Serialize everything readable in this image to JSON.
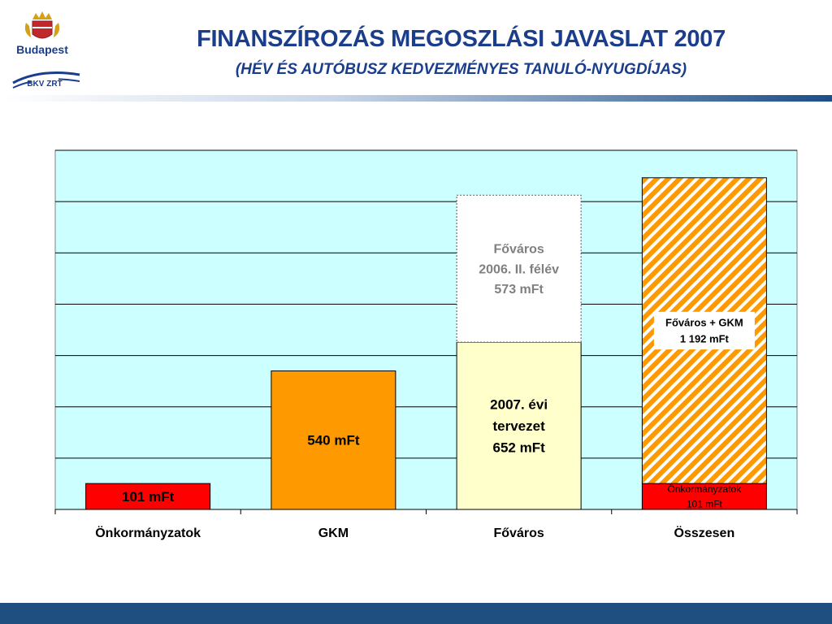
{
  "header": {
    "title": "FINANSZÍROZÁS MEGOSZLÁSI JAVASLAT 2007",
    "subtitle": "(HÉV ÉS AUTÓBUSZ KEDVEZMÉNYES TANULÓ-NYUGDÍJAS)"
  },
  "logos": {
    "city": "Budapest",
    "company": "BKV ZRT"
  },
  "colors": {
    "plot_bg": "#ccffff",
    "onkormanyzatok": "#ff0000",
    "gkm": "#ff9900",
    "fovaros_2007": "#ffffcc",
    "fovaros_2006": "#ffffff",
    "osszesen_hatch_a": "#ffffff",
    "osszesen_hatch_b": "#ff9900",
    "title": "#1a3d8c",
    "bottom_bar": "#1f4f80"
  },
  "chart_data": {
    "type": "bar",
    "stacked": true,
    "categories": [
      "Önkormányzatok",
      "GKM",
      "Főváros",
      "Összesen"
    ],
    "ylim": [
      0,
      1400
    ],
    "grid": true,
    "series": [
      {
        "values": [
          101,
          0,
          0,
          101
        ],
        "colors": [
          "#ff0000",
          "#ff0000",
          "#ff0000",
          "#ff0000"
        ],
        "labels": [
          "101 mFt",
          "",
          "",
          "Önkormányzatok\n101 mFt"
        ]
      },
      {
        "values": [
          0,
          540,
          652,
          1192
        ],
        "colors": [
          "#ff9900",
          "#ff9900",
          "#ffffcc",
          "hatch"
        ],
        "labels": [
          "",
          "540 mFt",
          "2007. évi\ntervezet\n652 mFt",
          "Főváros + GKM\n1 192 mFt"
        ]
      },
      {
        "values": [
          0,
          0,
          573,
          0
        ],
        "colors": [
          "#ffffff",
          "#ffffff",
          "#ffffff",
          "#ffffff"
        ],
        "labels": [
          "",
          "",
          "Főváros\n2006. II. félév\n573 mFt",
          ""
        ]
      }
    ]
  }
}
